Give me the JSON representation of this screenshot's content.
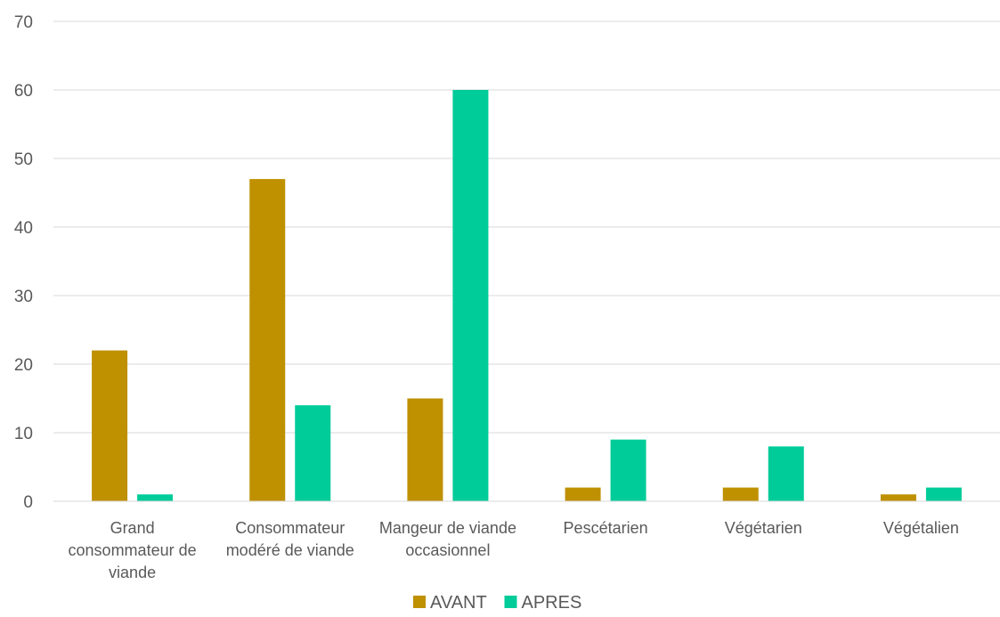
{
  "chart_data": {
    "type": "bar",
    "categories": [
      [
        "Grand",
        "consommateur de",
        "viande"
      ],
      [
        "Consommateur",
        "modéré de viande"
      ],
      [
        "Mangeur de viande",
        "occasionnel"
      ],
      [
        "Pescétarien"
      ],
      [
        "Végétarien"
      ],
      [
        "Végétalien"
      ]
    ],
    "series": [
      {
        "name": "AVANT",
        "color": "#BF9000",
        "values": [
          22,
          47,
          15,
          2,
          2,
          1
        ]
      },
      {
        "name": "APRES",
        "color": "#00CC99",
        "values": [
          1,
          14,
          60,
          9,
          8,
          2
        ]
      }
    ],
    "ylim": [
      0,
      70
    ],
    "yticks": [
      "0",
      "10",
      "20",
      "30",
      "40",
      "50",
      "60",
      "70"
    ],
    "grid": true,
    "legend_position": "bottom",
    "title": "",
    "xlabel": "",
    "ylabel": ""
  }
}
